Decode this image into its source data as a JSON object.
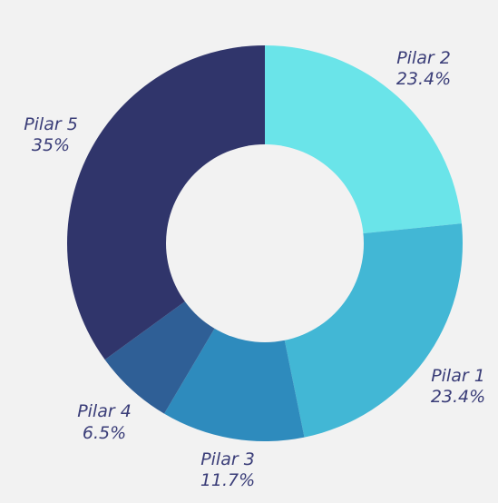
{
  "chart_data": {
    "type": "pie",
    "donut": true,
    "start": "top, clockwise",
    "slices": [
      {
        "name": "Pilar 2",
        "value": 23.4,
        "value_label": "23.4%",
        "color": "#6ae4e9"
      },
      {
        "name": "Pilar 1",
        "value": 23.4,
        "value_label": "23.4%",
        "color": "#42b7d5"
      },
      {
        "name": "Pilar 3",
        "value": 11.7,
        "value_label": "11.7%",
        "color": "#2e8bbd"
      },
      {
        "name": "Pilar 4",
        "value": 6.5,
        "value_label": "6.5%",
        "color": "#2f5f96"
      },
      {
        "name": "Pilar 5",
        "value": 35,
        "value_label": "35%",
        "color": "#30356b"
      }
    ],
    "legend": "none",
    "label_color": "#3a3d78",
    "background": "#f2f2f2"
  }
}
